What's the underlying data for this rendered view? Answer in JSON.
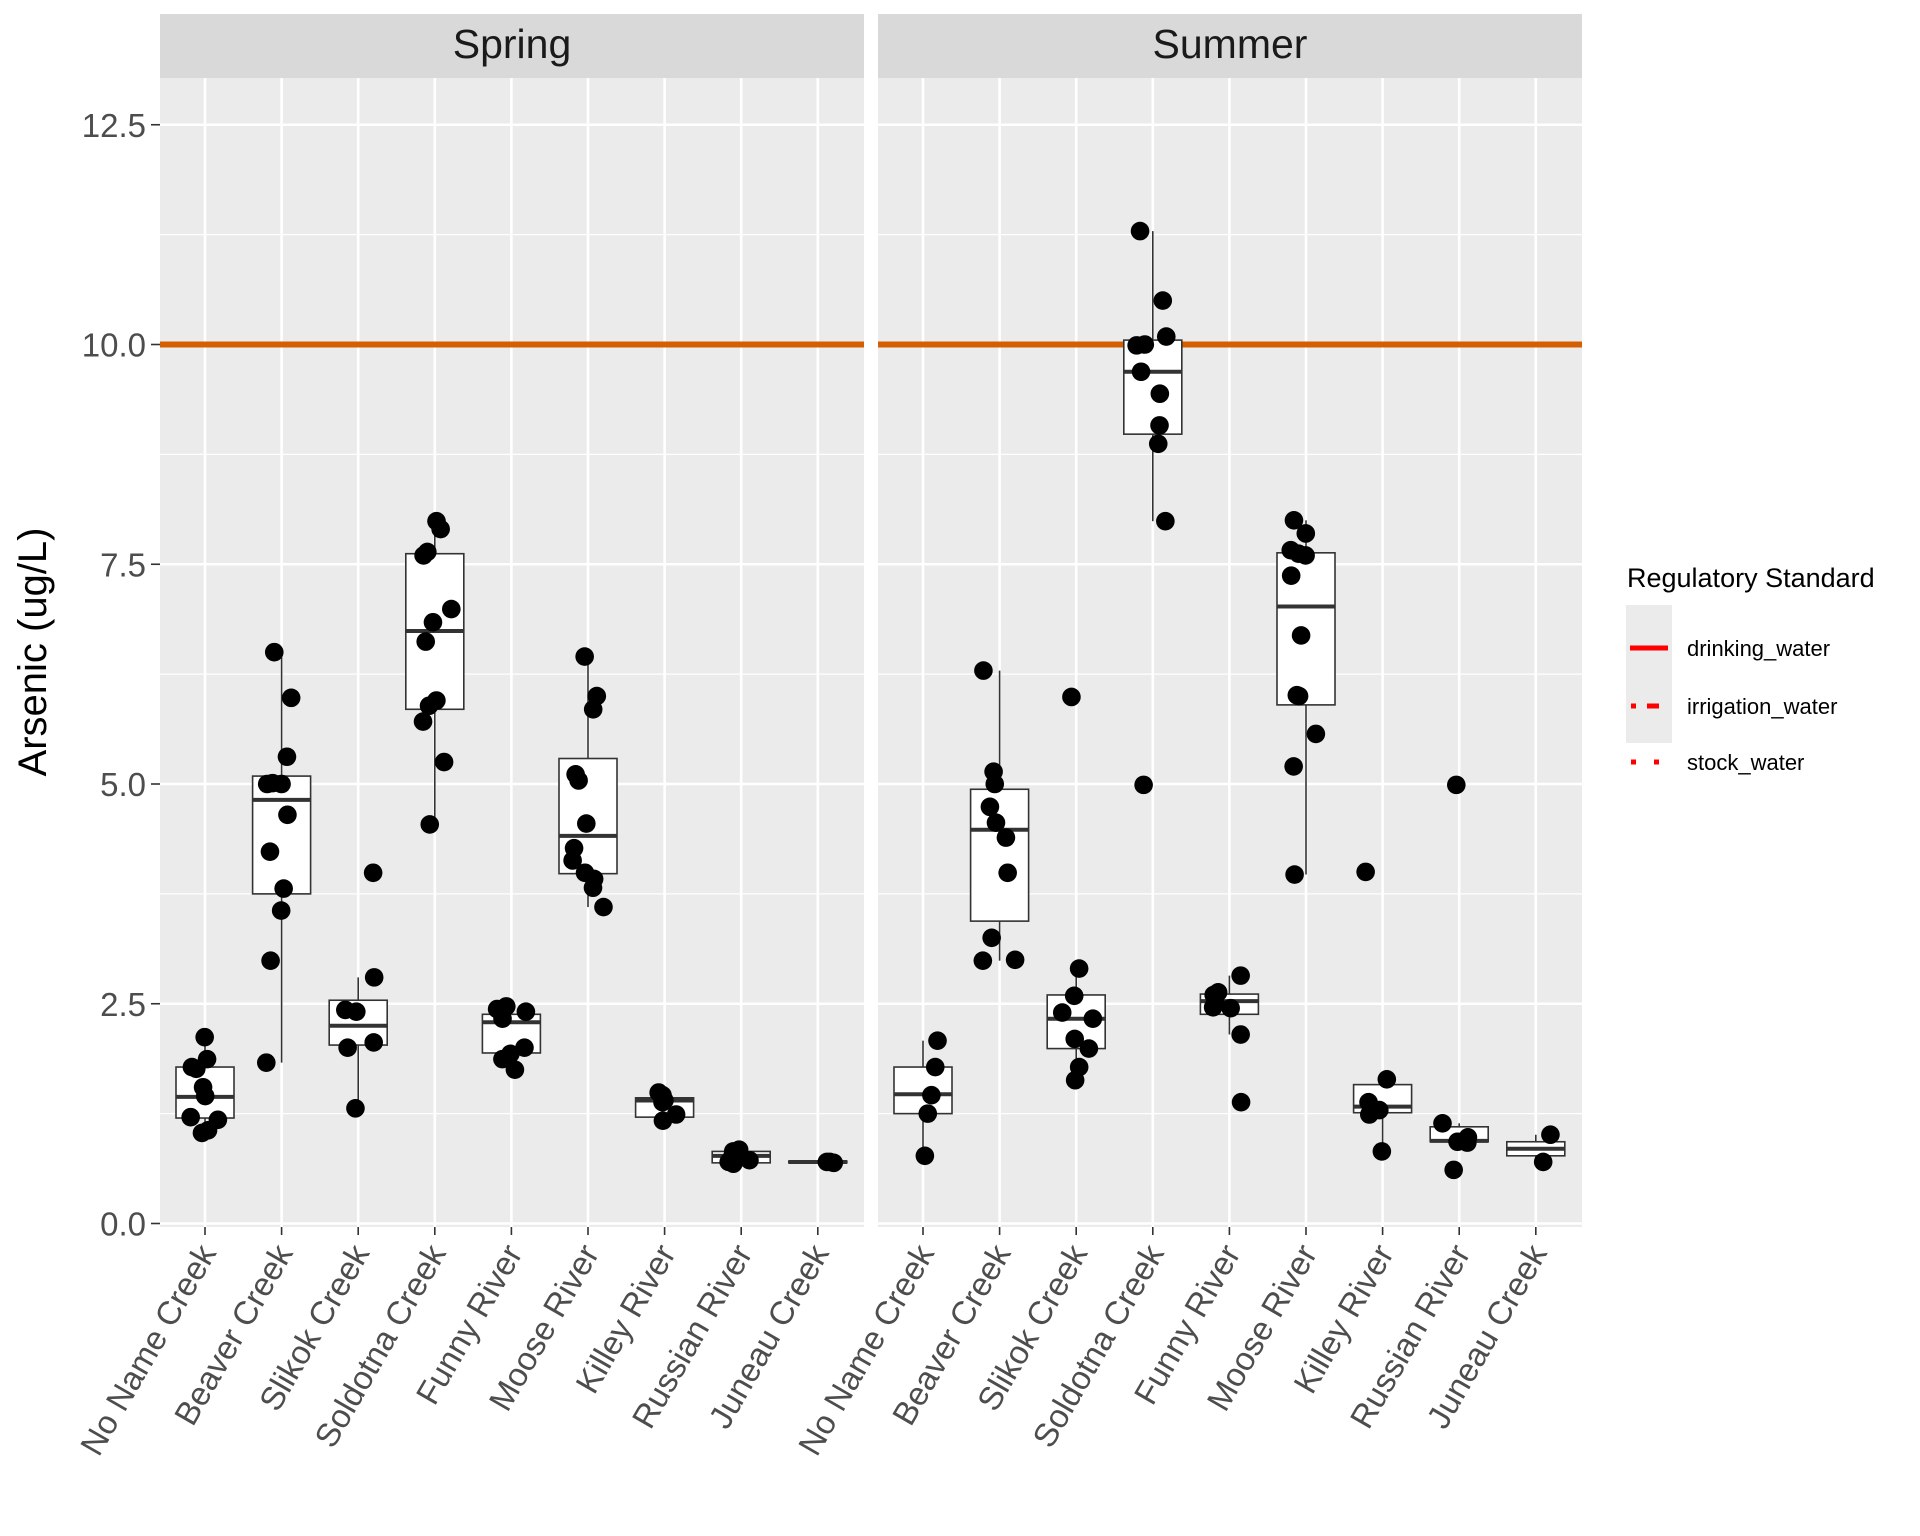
{
  "chart_data": {
    "type": "boxplot",
    "title": "",
    "xlabel": "",
    "ylabel": "Arsenic (ug/L)",
    "ylim": [
      0,
      13
    ],
    "yticks": [
      "0.0",
      "2.5",
      "5.0",
      "7.5",
      "10.0",
      "12.5"
    ],
    "ytick_values": [
      0,
      2.5,
      5,
      7.5,
      10,
      12.5
    ],
    "grid": true,
    "categories": [
      "No Name Creek",
      "Beaver Creek",
      "Slikok Creek",
      "Soldotna Creek",
      "Funny River",
      "Moose River",
      "Killey River",
      "Russian River",
      "Juneau Creek"
    ],
    "reference_line": {
      "value": 10,
      "label": "drinking_water",
      "color": "#D55E00"
    },
    "legend": {
      "title": "Regulatory Standard",
      "placement": "right",
      "entries": [
        {
          "label": "drinking_water",
          "style": "solid",
          "color": "#FF0000"
        },
        {
          "label": "irrigation_water",
          "style": "dashed",
          "color": "#FF0000"
        },
        {
          "label": "stock_water",
          "style": "dotted",
          "color": "#FF0000"
        }
      ]
    },
    "panels": [
      {
        "facet": "Spring",
        "groups": [
          {
            "site": "No Name Creek",
            "q1": 1.2,
            "median": 1.44,
            "q3": 1.78,
            "whisker_low": 1.03,
            "whisker_high": 2.12,
            "points": [
              2.12,
              1.87,
              1.78,
              1.76,
              1.55,
              1.45,
              1.21,
              1.18,
              1.06,
              1.03
            ]
          },
          {
            "site": "Beaver Creek",
            "q1": 3.75,
            "median": 4.82,
            "q3": 5.09,
            "whisker_low": 1.83,
            "whisker_high": 6.5,
            "points": [
              6.5,
              5.98,
              5.31,
              5.0,
              5.0,
              5.01,
              4.65,
              4.23,
              3.81,
              3.56,
              2.99,
              1.83
            ]
          },
          {
            "site": "Slikok Creek",
            "q1": 2.03,
            "median": 2.25,
            "q3": 2.54,
            "whisker_low": 1.31,
            "whisker_high": 2.8,
            "points": [
              3.99,
              2.8,
              2.43,
              2.41,
              2.06,
              2.0,
              1.31
            ]
          },
          {
            "site": "Soldotna Creek",
            "q1": 5.85,
            "median": 6.74,
            "q3": 7.62,
            "whisker_low": 4.54,
            "whisker_high": 7.99,
            "points": [
              7.99,
              7.9,
              7.64,
              7.6,
              6.99,
              6.84,
              6.62,
              5.95,
              5.89,
              5.71,
              5.25,
              4.54
            ]
          },
          {
            "site": "Funny River",
            "q1": 1.94,
            "median": 2.29,
            "q3": 2.38,
            "whisker_low": 1.75,
            "whisker_high": 2.47,
            "points": [
              2.47,
              2.44,
              2.41,
              2.33,
              2.0,
              1.93,
              1.87,
              1.75
            ]
          },
          {
            "site": "Moose River",
            "q1": 3.98,
            "median": 4.41,
            "q3": 5.29,
            "whisker_low": 3.6,
            "whisker_high": 6.45,
            "points": [
              6.45,
              6.0,
              5.85,
              5.11,
              5.04,
              4.55,
              4.27,
              4.13,
              3.99,
              3.92,
              3.82,
              3.6
            ]
          },
          {
            "site": "Killey River",
            "q1": 1.21,
            "median": 1.4,
            "q3": 1.43,
            "whisker_low": 1.17,
            "whisker_high": 1.49,
            "points": [
              1.49,
              1.46,
              1.4,
              1.38,
              1.24,
              1.17
            ]
          },
          {
            "site": "Russian River",
            "q1": 0.69,
            "median": 0.77,
            "q3": 0.82,
            "whisker_low": 0.68,
            "whisker_high": 0.84,
            "points": [
              0.84,
              0.82,
              0.76,
              0.72,
              0.7,
              0.68
            ]
          },
          {
            "site": "Juneau Creek",
            "q1": 0.69,
            "median": 0.7,
            "q3": 0.71,
            "whisker_low": 0.69,
            "whisker_high": 0.71,
            "points": [
              0.7,
              0.7,
              0.69
            ]
          }
        ]
      },
      {
        "facet": "Summer",
        "groups": [
          {
            "site": "No Name Creek",
            "q1": 1.25,
            "median": 1.47,
            "q3": 1.78,
            "whisker_low": 0.77,
            "whisker_high": 2.08,
            "points": [
              2.08,
              1.78,
              1.46,
              1.25,
              0.77
            ]
          },
          {
            "site": "Beaver Creek",
            "q1": 3.44,
            "median": 4.48,
            "q3": 4.94,
            "whisker_low": 2.99,
            "whisker_high": 6.29,
            "points": [
              6.29,
              5.14,
              5.0,
              4.74,
              4.56,
              4.39,
              3.99,
              3.25,
              3.0,
              2.99
            ]
          },
          {
            "site": "Slikok Creek",
            "q1": 1.99,
            "median": 2.33,
            "q3": 2.6,
            "whisker_low": 1.63,
            "whisker_high": 2.9,
            "points": [
              5.99,
              2.9,
              2.59,
              2.4,
              2.33,
              2.1,
              1.99,
              1.78,
              1.63
            ]
          },
          {
            "site": "Soldotna Creek",
            "q1": 8.98,
            "median": 9.69,
            "q3": 10.05,
            "whisker_low": 7.99,
            "whisker_high": 11.29,
            "points": [
              11.29,
              10.5,
              10.09,
              10.0,
              9.99,
              9.69,
              9.44,
              9.08,
              8.87,
              7.99,
              4.99
            ]
          },
          {
            "site": "Funny River",
            "q1": 2.38,
            "median": 2.53,
            "q3": 2.61,
            "whisker_low": 2.15,
            "whisker_high": 2.82,
            "points": [
              2.82,
              2.63,
              2.6,
              2.52,
              2.46,
              2.45,
              2.15,
              1.38
            ]
          },
          {
            "site": "Moose River",
            "q1": 5.9,
            "median": 7.02,
            "q3": 7.63,
            "whisker_low": 3.97,
            "whisker_high": 8.0,
            "points": [
              8.0,
              7.85,
              7.66,
              7.62,
              7.6,
              7.37,
              6.69,
              6.01,
              6.0,
              5.57,
              5.2,
              3.97
            ]
          },
          {
            "site": "Killey River",
            "q1": 1.26,
            "median": 1.33,
            "q3": 1.58,
            "whisker_low": 0.82,
            "whisker_high": 1.64,
            "points": [
              4.0,
              1.64,
              1.38,
              1.29,
              1.24,
              0.82
            ]
          },
          {
            "site": "Russian River",
            "q1": 0.93,
            "median": 0.94,
            "q3": 1.1,
            "whisker_low": 0.92,
            "whisker_high": 1.14,
            "points": [
              4.99,
              1.14,
              0.98,
              0.93,
              0.92,
              0.61
            ]
          },
          {
            "site": "Juneau Creek",
            "q1": 0.77,
            "median": 0.85,
            "q3": 0.93,
            "whisker_low": 0.7,
            "whisker_high": 1.01,
            "points": [
              1.01,
              0.7
            ]
          }
        ]
      }
    ]
  }
}
